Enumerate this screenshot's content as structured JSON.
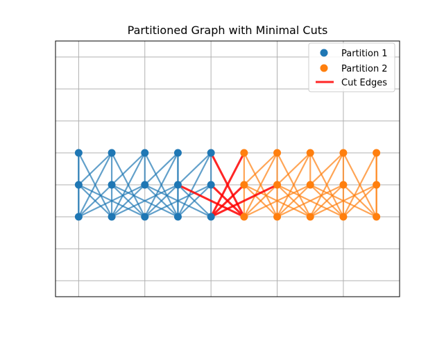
{
  "chart_data": {
    "type": "scatter",
    "title": "Partitioned Graph with Minimal Cuts",
    "xlabel": "",
    "ylabel": "",
    "xlim": [
      -0.7,
      9.7
    ],
    "ylim": [
      -2.5,
      5.5
    ],
    "grid": true,
    "axis_ticks_visible": false,
    "xticks": [
      0,
      2,
      4,
      6,
      8
    ],
    "yticks": [
      -2,
      -1,
      0,
      1,
      2,
      3,
      4,
      5
    ],
    "legend": {
      "position": "top-right",
      "entries": [
        {
          "label": "Partition 1",
          "kind": "marker",
          "color": "#1f77b4"
        },
        {
          "label": "Partition 2",
          "kind": "marker",
          "color": "#ff7f0e"
        },
        {
          "label": "Cut Edges",
          "kind": "line",
          "color": "#ff0000"
        }
      ]
    },
    "series": [
      {
        "name": "Partition 1",
        "color": "#1f77b4",
        "nodes": [
          [
            0,
            2
          ],
          [
            1,
            2
          ],
          [
            2,
            2
          ],
          [
            3,
            2
          ],
          [
            4,
            2
          ],
          [
            0,
            1
          ],
          [
            1,
            1
          ],
          [
            2,
            1
          ],
          [
            3,
            1
          ],
          [
            4,
            1
          ],
          [
            0,
            0
          ],
          [
            1,
            0
          ],
          [
            2,
            0
          ],
          [
            3,
            0
          ],
          [
            4,
            0
          ]
        ]
      },
      {
        "name": "Partition 2",
        "color": "#ff7f0e",
        "nodes": [
          [
            5,
            2
          ],
          [
            6,
            2
          ],
          [
            7,
            2
          ],
          [
            8,
            2
          ],
          [
            9,
            2
          ],
          [
            5,
            1
          ],
          [
            6,
            1
          ],
          [
            7,
            1
          ],
          [
            8,
            1
          ],
          [
            9,
            1
          ],
          [
            5,
            0
          ],
          [
            6,
            0
          ],
          [
            7,
            0
          ],
          [
            8,
            0
          ],
          [
            9,
            0
          ]
        ]
      }
    ],
    "edges": {
      "partition1_color": "#1f77b4",
      "partition2_color": "#ff7f0e",
      "cut_color": "#ff0000",
      "partition1": [
        [
          [
            0,
            2
          ],
          [
            0,
            1
          ]
        ],
        [
          [
            0,
            2
          ],
          [
            1,
            0
          ]
        ],
        [
          [
            0,
            2
          ],
          [
            0,
            0
          ]
        ],
        [
          [
            1,
            2
          ],
          [
            0,
            1
          ]
        ],
        [
          [
            1,
            2
          ],
          [
            1,
            1
          ]
        ],
        [
          [
            1,
            2
          ],
          [
            0,
            0
          ]
        ],
        [
          [
            1,
            2
          ],
          [
            2,
            0
          ]
        ],
        [
          [
            2,
            2
          ],
          [
            1,
            1
          ]
        ],
        [
          [
            2,
            2
          ],
          [
            2,
            1
          ]
        ],
        [
          [
            2,
            2
          ],
          [
            1,
            0
          ]
        ],
        [
          [
            2,
            2
          ],
          [
            3,
            0
          ]
        ],
        [
          [
            3,
            2
          ],
          [
            2,
            1
          ]
        ],
        [
          [
            3,
            2
          ],
          [
            3,
            1
          ]
        ],
        [
          [
            3,
            2
          ],
          [
            3,
            0
          ]
        ],
        [
          [
            3,
            2
          ],
          [
            2,
            0
          ]
        ],
        [
          [
            4,
            2
          ],
          [
            3,
            1
          ]
        ],
        [
          [
            4,
            2
          ],
          [
            4,
            1
          ]
        ],
        [
          [
            4,
            2
          ],
          [
            3,
            0
          ]
        ],
        [
          [
            0,
            1
          ],
          [
            1,
            0
          ]
        ],
        [
          [
            0,
            1
          ],
          [
            2,
            0
          ]
        ],
        [
          [
            0,
            1
          ],
          [
            0,
            0
          ]
        ],
        [
          [
            1,
            1
          ],
          [
            0,
            0
          ]
        ],
        [
          [
            1,
            1
          ],
          [
            2,
            0
          ]
        ],
        [
          [
            1,
            1
          ],
          [
            3,
            0
          ]
        ],
        [
          [
            1,
            1
          ],
          [
            1,
            0
          ]
        ],
        [
          [
            2,
            1
          ],
          [
            1,
            0
          ]
        ],
        [
          [
            2,
            1
          ],
          [
            3,
            0
          ]
        ],
        [
          [
            2,
            1
          ],
          [
            4,
            0
          ]
        ],
        [
          [
            2,
            1
          ],
          [
            0,
            0
          ]
        ],
        [
          [
            3,
            1
          ],
          [
            2,
            0
          ]
        ],
        [
          [
            3,
            1
          ],
          [
            4,
            0
          ]
        ],
        [
          [
            3,
            1
          ],
          [
            3,
            0
          ]
        ],
        [
          [
            3,
            1
          ],
          [
            1,
            0
          ]
        ],
        [
          [
            4,
            1
          ],
          [
            3,
            0
          ]
        ],
        [
          [
            4,
            1
          ],
          [
            4,
            0
          ]
        ],
        [
          [
            4,
            1
          ],
          [
            2,
            0
          ]
        ]
      ],
      "partition2": [
        [
          [
            5,
            2
          ],
          [
            5,
            1
          ]
        ],
        [
          [
            5,
            2
          ],
          [
            6,
            0
          ]
        ],
        [
          [
            6,
            2
          ],
          [
            5,
            1
          ]
        ],
        [
          [
            6,
            2
          ],
          [
            6,
            1
          ]
        ],
        [
          [
            6,
            2
          ],
          [
            5,
            0
          ]
        ],
        [
          [
            6,
            2
          ],
          [
            7,
            0
          ]
        ],
        [
          [
            7,
            2
          ],
          [
            6,
            1
          ]
        ],
        [
          [
            7,
            2
          ],
          [
            7,
            1
          ]
        ],
        [
          [
            7,
            2
          ],
          [
            6,
            0
          ]
        ],
        [
          [
            7,
            2
          ],
          [
            8,
            0
          ]
        ],
        [
          [
            8,
            2
          ],
          [
            7,
            1
          ]
        ],
        [
          [
            8,
            2
          ],
          [
            8,
            1
          ]
        ],
        [
          [
            8,
            2
          ],
          [
            7,
            0
          ]
        ],
        [
          [
            8,
            2
          ],
          [
            9,
            0
          ]
        ],
        [
          [
            9,
            2
          ],
          [
            9,
            1
          ]
        ],
        [
          [
            9,
            2
          ],
          [
            9,
            0
          ]
        ],
        [
          [
            9,
            2
          ],
          [
            8,
            0
          ]
        ],
        [
          [
            5,
            1
          ],
          [
            6,
            0
          ]
        ],
        [
          [
            5,
            1
          ],
          [
            7,
            0
          ]
        ],
        [
          [
            5,
            1
          ],
          [
            5,
            0
          ]
        ],
        [
          [
            6,
            1
          ],
          [
            5,
            0
          ]
        ],
        [
          [
            6,
            1
          ],
          [
            7,
            0
          ]
        ],
        [
          [
            6,
            1
          ],
          [
            8,
            0
          ]
        ],
        [
          [
            6,
            1
          ],
          [
            6,
            0
          ]
        ],
        [
          [
            7,
            1
          ],
          [
            6,
            0
          ]
        ],
        [
          [
            7,
            1
          ],
          [
            8,
            0
          ]
        ],
        [
          [
            7,
            1
          ],
          [
            9,
            0
          ]
        ],
        [
          [
            7,
            1
          ],
          [
            5,
            0
          ]
        ],
        [
          [
            8,
            1
          ],
          [
            7,
            0
          ]
        ],
        [
          [
            8,
            1
          ],
          [
            9,
            0
          ]
        ],
        [
          [
            8,
            1
          ],
          [
            8,
            0
          ]
        ],
        [
          [
            8,
            1
          ],
          [
            6,
            0
          ]
        ],
        [
          [
            9,
            1
          ],
          [
            8,
            0
          ]
        ],
        [
          [
            9,
            1
          ],
          [
            9,
            0
          ]
        ],
        [
          [
            9,
            1
          ],
          [
            7,
            0
          ]
        ]
      ],
      "cut": [
        [
          [
            4,
            2
          ],
          [
            5,
            0
          ]
        ],
        [
          [
            5,
            2
          ],
          [
            4,
            0
          ]
        ],
        [
          [
            3,
            1
          ],
          [
            5,
            0
          ]
        ],
        [
          [
            4,
            1
          ],
          [
            5,
            0
          ]
        ],
        [
          [
            4,
            0
          ],
          [
            5,
            1
          ]
        ],
        [
          [
            4,
            0
          ],
          [
            6,
            1
          ]
        ]
      ]
    }
  }
}
